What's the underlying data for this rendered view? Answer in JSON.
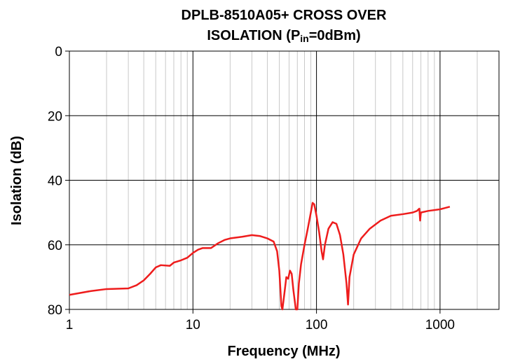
{
  "chart_data": {
    "type": "line",
    "title": {
      "line1": "DPLB-8510A05+ CROSS OVER",
      "line2": [
        "ISOLATION (P",
        "in",
        "=0dBm)"
      ]
    },
    "x_label": "Frequency (MHz)",
    "y_label": "Isolation (dB)",
    "x_scale": "log",
    "xlim": [
      1,
      3000
    ],
    "xticks": [
      1,
      10,
      100,
      1000
    ],
    "xminor": [
      2,
      3,
      4,
      5,
      6,
      7,
      8,
      9,
      20,
      30,
      40,
      50,
      60,
      70,
      80,
      90,
      200,
      300,
      400,
      500,
      600,
      700,
      800,
      900,
      2000
    ],
    "ylim": [
      80,
      0
    ],
    "yticks": [
      0,
      20,
      40,
      60,
      80
    ],
    "grid": true,
    "series": [
      {
        "name": "Isolation",
        "color": "#ee1c1c",
        "x": [
          1,
          1.5,
          2,
          3,
          3.5,
          4,
          4.5,
          5,
          5.5,
          6.5,
          7,
          8,
          9,
          10,
          11,
          12,
          14,
          16,
          18,
          20,
          25,
          30,
          35,
          40,
          45,
          48,
          50,
          52,
          53,
          55,
          57,
          59,
          61,
          63,
          65,
          67,
          68,
          70,
          72,
          75,
          80,
          85,
          90,
          93,
          96,
          100,
          105,
          110,
          113,
          117,
          125,
          135,
          145,
          155,
          165,
          175,
          180,
          185,
          200,
          230,
          270,
          330,
          400,
          500,
          600,
          650,
          680,
          690,
          700,
          800,
          1000,
          1200
        ],
        "values": [
          75.5,
          74.3,
          73.7,
          73.5,
          72.5,
          71,
          69,
          67,
          66.3,
          66.5,
          65.5,
          64.8,
          64,
          62.5,
          61.5,
          61,
          61,
          59.5,
          58.5,
          58,
          57.5,
          57,
          57.3,
          58,
          59,
          62,
          68,
          79,
          80,
          75,
          70,
          70.5,
          68,
          69,
          74,
          78,
          80,
          80,
          72,
          66,
          60,
          55,
          50,
          47,
          47.5,
          51,
          56,
          62,
          64.5,
          60,
          55,
          53,
          53.5,
          57,
          63,
          72,
          78.5,
          70,
          63,
          58,
          55,
          52.5,
          51,
          50.5,
          50,
          49.5,
          48.8,
          52.5,
          50,
          49.5,
          49,
          48.2
        ]
      }
    ]
  }
}
